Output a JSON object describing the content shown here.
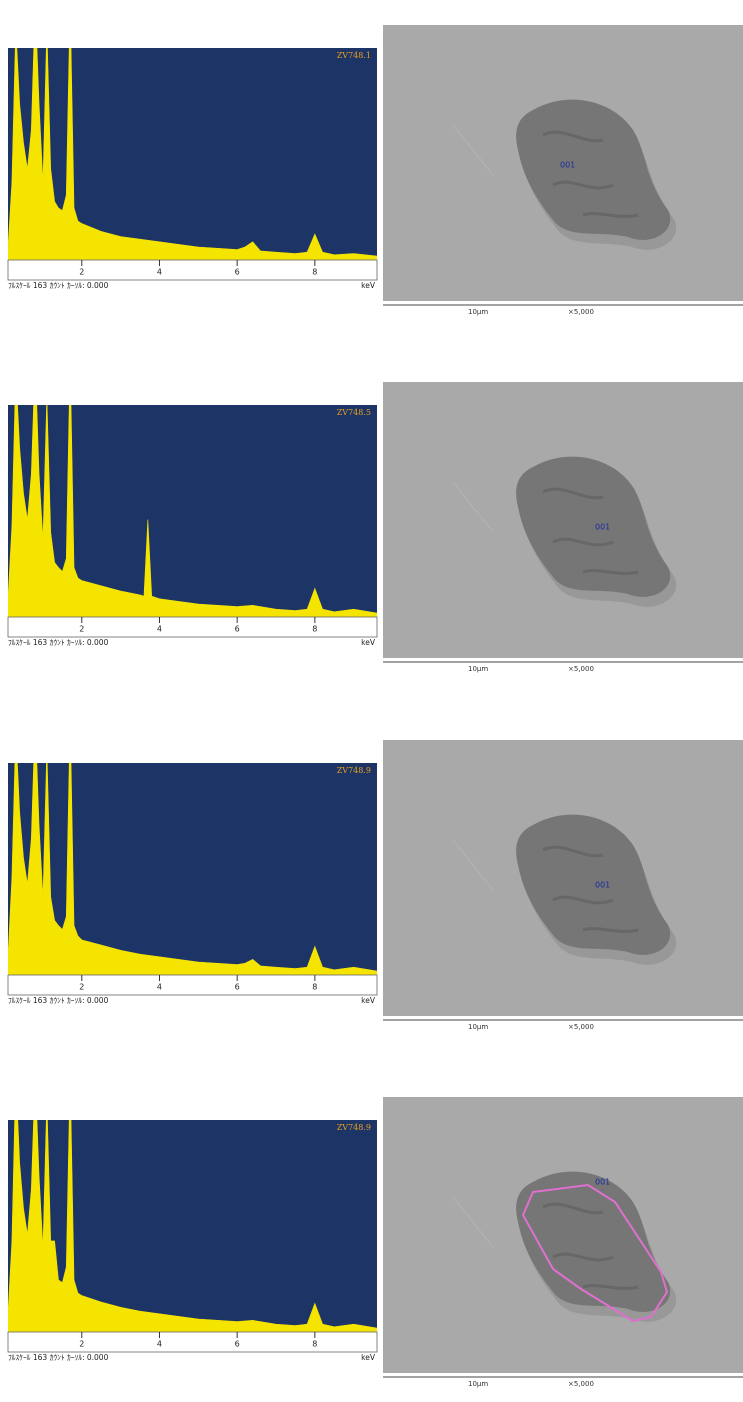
{
  "chart_data": [
    {
      "type": "area",
      "title": "ZV748.1",
      "x_label": "keV",
      "footer": "ﾌﾙｽｹｰﾙ 163 ｶｳﾝﾄ ｶｰｿﾙ: 0.000",
      "x": [
        0.1,
        0.2,
        0.3,
        0.4,
        0.5,
        0.6,
        0.7,
        0.8,
        0.9,
        1.0,
        1.1,
        1.2,
        1.3,
        1.4,
        1.5,
        1.6,
        1.7,
        1.8,
        1.9,
        2.0,
        2.5,
        3.0,
        3.5,
        4.0,
        4.5,
        5.0,
        5.5,
        6.0,
        6.2,
        6.4,
        6.6,
        7.0,
        7.5,
        7.8,
        8.0,
        8.2,
        8.5,
        9.0,
        9.6
      ],
      "values": [
        10,
        60,
        180,
        120,
        90,
        70,
        100,
        200,
        120,
        60,
        180,
        70,
        45,
        40,
        38,
        50,
        200,
        40,
        30,
        28,
        22,
        18,
        16,
        14,
        12,
        10,
        9,
        8,
        10,
        14,
        7,
        6,
        5,
        6,
        20,
        6,
        4,
        5,
        3
      ],
      "color": "#f5e400",
      "background": "#1d3466",
      "xlim": [
        0.1,
        9.6
      ],
      "ylim": [
        0,
        163
      ],
      "xticks": [
        2,
        4,
        6,
        8
      ]
    },
    {
      "type": "area",
      "title": "ZV748.5",
      "x_label": "keV",
      "footer": "ﾌﾙｽｹｰﾙ 163 ｶｳﾝﾄ ｶｰｿﾙ: 0.000",
      "x": [
        0.1,
        0.2,
        0.3,
        0.4,
        0.5,
        0.6,
        0.7,
        0.8,
        0.9,
        1.0,
        1.1,
        1.2,
        1.3,
        1.4,
        1.5,
        1.6,
        1.7,
        1.8,
        1.9,
        2.0,
        2.5,
        3.0,
        3.5,
        3.6,
        3.7,
        3.8,
        4.0,
        4.5,
        5.0,
        5.5,
        6.0,
        6.4,
        7.0,
        7.5,
        7.8,
        8.0,
        8.2,
        8.5,
        9.0,
        9.6
      ],
      "values": [
        15,
        70,
        190,
        130,
        95,
        75,
        110,
        200,
        110,
        60,
        170,
        65,
        42,
        38,
        35,
        45,
        200,
        38,
        30,
        28,
        24,
        20,
        17,
        16,
        75,
        16,
        14,
        12,
        10,
        9,
        8,
        9,
        6,
        5,
        6,
        22,
        6,
        4,
        6,
        3
      ],
      "color": "#f5e400",
      "background": "#1d3466",
      "xlim": [
        0.1,
        9.6
      ],
      "ylim": [
        0,
        163
      ],
      "xticks": [
        2,
        4,
        6,
        8
      ]
    },
    {
      "type": "area",
      "title": "ZV748.9",
      "x_label": "keV",
      "footer": "ﾌﾙｽｹｰﾙ 163 ｶｳﾝﾄ ｶｰｿﾙ: 0.000",
      "x": [
        0.1,
        0.2,
        0.3,
        0.4,
        0.5,
        0.6,
        0.7,
        0.8,
        0.9,
        1.0,
        1.1,
        1.2,
        1.3,
        1.4,
        1.5,
        1.6,
        1.7,
        1.8,
        1.9,
        2.0,
        2.5,
        3.0,
        3.5,
        4.0,
        4.5,
        5.0,
        5.5,
        6.0,
        6.2,
        6.4,
        6.6,
        7.0,
        7.5,
        7.8,
        8.0,
        8.2,
        8.5,
        9.0,
        9.6
      ],
      "values": [
        15,
        75,
        190,
        125,
        90,
        70,
        105,
        200,
        115,
        60,
        175,
        60,
        42,
        38,
        35,
        45,
        200,
        38,
        30,
        27,
        23,
        19,
        16,
        14,
        12,
        10,
        9,
        8,
        9,
        12,
        7,
        6,
        5,
        6,
        22,
        6,
        4,
        6,
        3
      ],
      "color": "#f5e400",
      "background": "#1d3466",
      "xlim": [
        0.1,
        9.6
      ],
      "ylim": [
        0,
        163
      ],
      "xticks": [
        2,
        4,
        6,
        8
      ]
    },
    {
      "type": "area",
      "title": "ZV748.9",
      "x_label": "keV",
      "footer": "ﾌﾙｽｹｰﾙ 163 ｶｳﾝﾄ ｶｰｿﾙ: 0.000",
      "x": [
        0.1,
        0.2,
        0.3,
        0.4,
        0.5,
        0.6,
        0.7,
        0.8,
        0.9,
        1.0,
        1.1,
        1.2,
        1.3,
        1.4,
        1.5,
        1.6,
        1.7,
        1.8,
        1.9,
        2.0,
        2.5,
        3.0,
        3.5,
        4.0,
        4.5,
        5.0,
        5.5,
        6.0,
        6.4,
        7.0,
        7.5,
        7.8,
        8.0,
        8.2,
        8.5,
        9.0,
        9.6
      ],
      "values": [
        15,
        70,
        200,
        130,
        95,
        75,
        110,
        200,
        120,
        65,
        180,
        70,
        70,
        40,
        38,
        50,
        200,
        40,
        30,
        28,
        23,
        19,
        16,
        14,
        12,
        10,
        9,
        8,
        9,
        6,
        5,
        6,
        22,
        6,
        4,
        6,
        3
      ],
      "color": "#f5e400",
      "background": "#1d3466",
      "xlim": [
        0.1,
        9.6
      ],
      "ylim": [
        0,
        163
      ],
      "xticks": [
        2,
        4,
        6,
        8
      ]
    }
  ],
  "images": [
    {
      "label": "001",
      "scale_bar": "10µm",
      "magnification": "×5,000"
    },
    {
      "label": "001",
      "scale_bar": "10µm",
      "magnification": "×5,000"
    },
    {
      "label": "001",
      "scale_bar": "10µm",
      "magnification": "×5,000"
    },
    {
      "label": "001",
      "scale_bar": "10µm",
      "magnification": "×5,000"
    }
  ]
}
